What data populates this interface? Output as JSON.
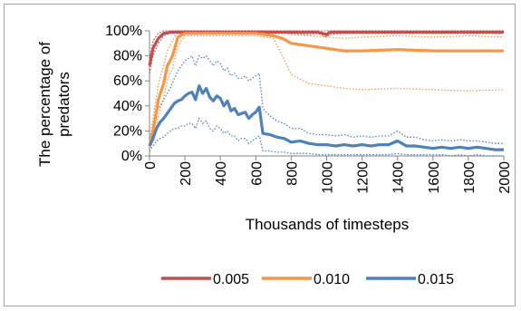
{
  "chart_data": {
    "type": "line",
    "title": "",
    "xlabel": "Thousands of timesteps",
    "ylabel_lines": [
      "The percentage of",
      "predators"
    ],
    "xlim": [
      0,
      2000
    ],
    "ylim": [
      0,
      100
    ],
    "x_ticks": [
      "0",
      "200",
      "400",
      "600",
      "800",
      "1000",
      "1200",
      "1400",
      "1600",
      "1800",
      "2000"
    ],
    "y_ticks": [
      "0%",
      "20%",
      "40%",
      "60%",
      "80%",
      "100%"
    ],
    "grid": false,
    "legend_position": "bottom",
    "series": [
      {
        "name": "0.005",
        "color": "#c0504d",
        "x": [
          0,
          20,
          50,
          80,
          120,
          200,
          400,
          600,
          700,
          800,
          900,
          950,
          1000,
          1020,
          1100,
          1200,
          1400,
          1600,
          1800,
          2000
        ],
        "mean": [
          72,
          86,
          94,
          98,
          99,
          99,
          99,
          99,
          99,
          99,
          99,
          99,
          97,
          99,
          99,
          99,
          99,
          99,
          99,
          99
        ],
        "upper": [
          78,
          92,
          98,
          100,
          100,
          100,
          100,
          100,
          100,
          100,
          100,
          100,
          100,
          100,
          100,
          100,
          100,
          100,
          100,
          100
        ],
        "lower": [
          66,
          80,
          90,
          96,
          98,
          98,
          98,
          98,
          98,
          98,
          97,
          98,
          95,
          97,
          98,
          98,
          98,
          98,
          98,
          98
        ]
      },
      {
        "name": "0.010",
        "color": "#f79646",
        "x": [
          0,
          20,
          50,
          80,
          100,
          130,
          160,
          200,
          300,
          400,
          500,
          600,
          700,
          750,
          800,
          900,
          1000,
          1100,
          1200,
          1400,
          1600,
          1800,
          2000
        ],
        "mean": [
          8,
          20,
          45,
          58,
          72,
          80,
          95,
          98,
          98,
          98,
          98,
          98,
          96,
          94,
          90,
          88,
          86,
          84,
          84,
          85,
          84,
          84,
          84
        ],
        "upper": [
          12,
          30,
          58,
          72,
          84,
          92,
          100,
          100,
          100,
          100,
          100,
          100,
          100,
          99,
          97,
          96,
          95,
          94,
          95,
          96,
          95,
          96,
          95
        ],
        "lower": [
          4,
          12,
          32,
          46,
          60,
          70,
          88,
          96,
          96,
          96,
          96,
          96,
          94,
          80,
          65,
          58,
          56,
          54,
          53,
          54,
          53,
          52,
          53
        ]
      },
      {
        "name": "0.015",
        "color": "#4f81bd",
        "x": [
          0,
          20,
          40,
          60,
          80,
          100,
          120,
          140,
          160,
          180,
          200,
          220,
          240,
          260,
          280,
          300,
          320,
          340,
          360,
          380,
          400,
          420,
          440,
          460,
          480,
          500,
          520,
          540,
          560,
          580,
          600,
          620,
          640,
          680,
          720,
          760,
          800,
          850,
          900,
          950,
          1000,
          1050,
          1100,
          1150,
          1200,
          1250,
          1300,
          1350,
          1400,
          1450,
          1500,
          1550,
          1600,
          1650,
          1700,
          1750,
          1800,
          1850,
          1900,
          1950,
          2000
        ],
        "mean": [
          8,
          14,
          22,
          27,
          30,
          34,
          38,
          42,
          44,
          45,
          48,
          50,
          51,
          45,
          56,
          50,
          54,
          47,
          44,
          48,
          46,
          40,
          44,
          36,
          38,
          33,
          34,
          35,
          30,
          33,
          35,
          39,
          18,
          17,
          15,
          14,
          11,
          12,
          10,
          9,
          9,
          8,
          9,
          8,
          9,
          8,
          9,
          9,
          12,
          8,
          8,
          7,
          6,
          7,
          6,
          7,
          6,
          7,
          6,
          5,
          5
        ],
        "upper": [
          12,
          22,
          35,
          40,
          45,
          50,
          55,
          62,
          68,
          72,
          76,
          78,
          80,
          72,
          80,
          78,
          80,
          76,
          72,
          76,
          74,
          68,
          70,
          64,
          66,
          62,
          62,
          64,
          60,
          62,
          64,
          66,
          38,
          32,
          28,
          26,
          22,
          22,
          18,
          17,
          17,
          16,
          17,
          15,
          16,
          15,
          16,
          16,
          20,
          15,
          15,
          13,
          12,
          13,
          12,
          13,
          12,
          12,
          11,
          10,
          10
        ],
        "lower": [
          4,
          8,
          12,
          14,
          15,
          18,
          20,
          22,
          22,
          24,
          24,
          26,
          26,
          22,
          30,
          26,
          28,
          22,
          20,
          24,
          22,
          18,
          20,
          16,
          16,
          12,
          14,
          14,
          10,
          12,
          14,
          16,
          4,
          4,
          3,
          3,
          2,
          2,
          2,
          1,
          1,
          1,
          1,
          1,
          1,
          1,
          1,
          1,
          2,
          1,
          1,
          1,
          1,
          1,
          0,
          1,
          0,
          1,
          0,
          0,
          0
        ]
      }
    ]
  }
}
